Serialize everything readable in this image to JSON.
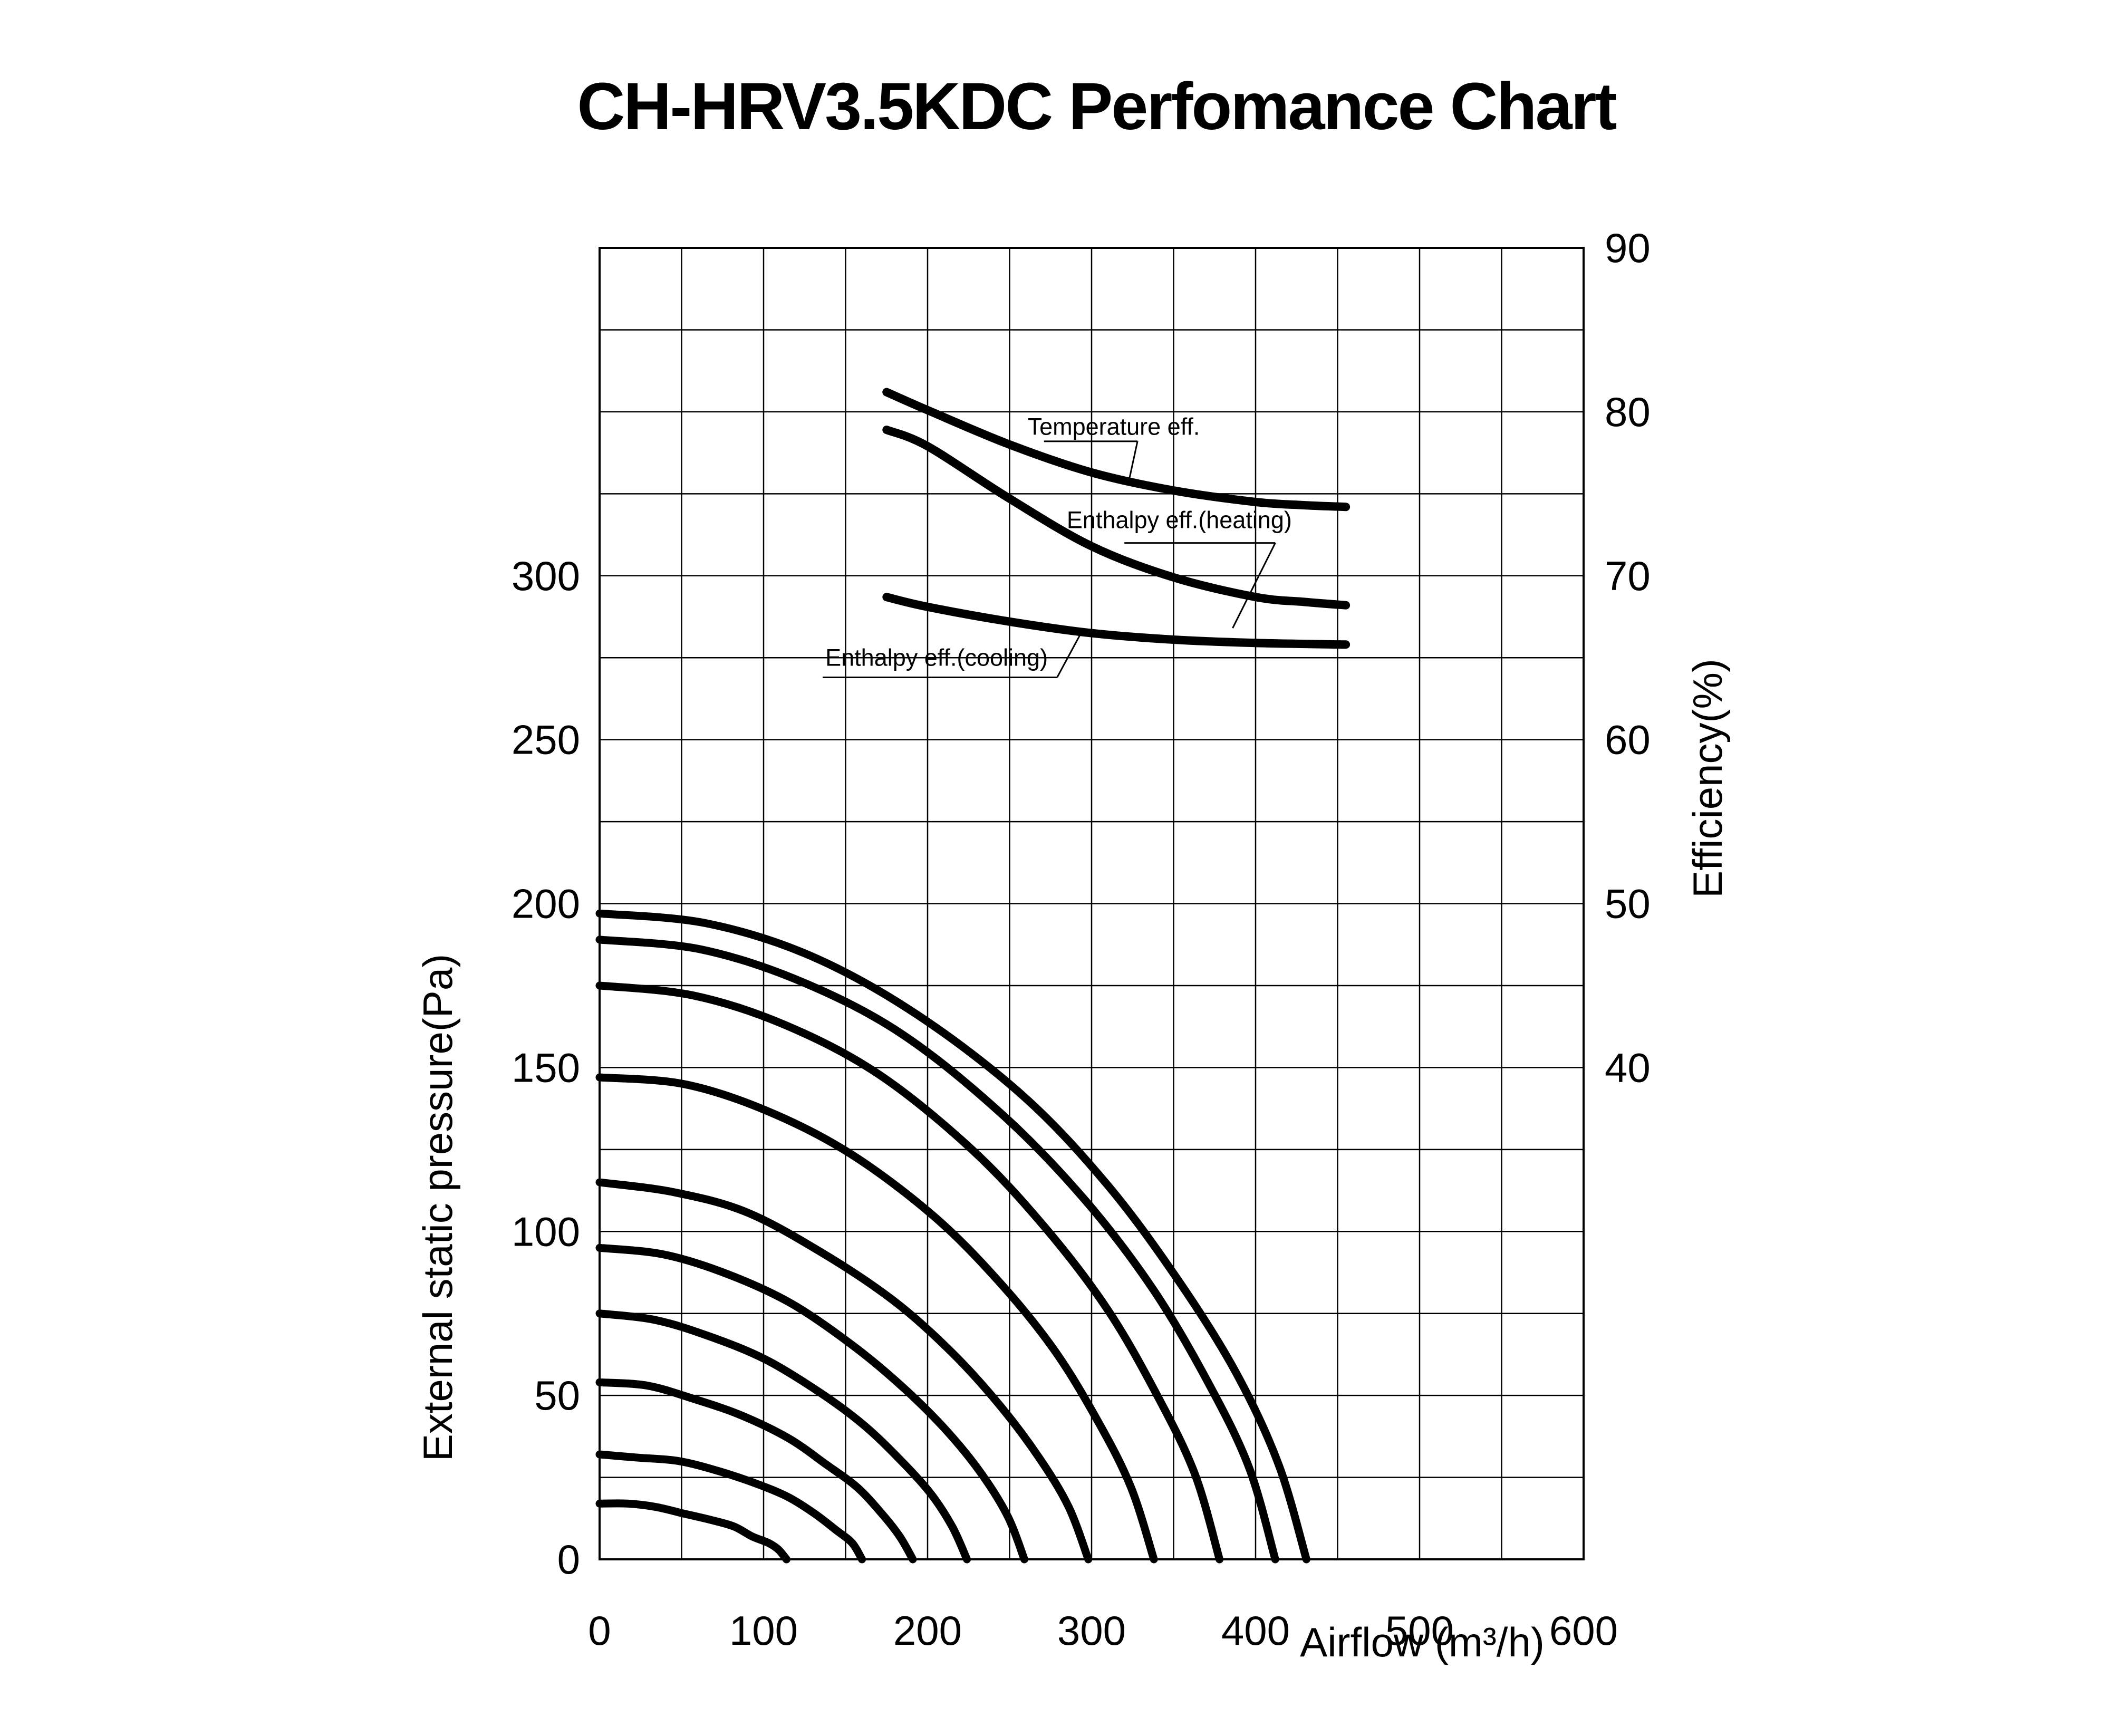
{
  "title": "CH-HRV3.5KDC Perfomance Chart",
  "colors": {
    "ink": "#000000",
    "background": "#ffffff"
  },
  "axes": {
    "x": {
      "label": "Airflow (m³/h)",
      "ticks": [
        0,
        100,
        200,
        300,
        400,
        500,
        600
      ],
      "min": 0,
      "max": 600,
      "gridline_step": 50
    },
    "y_left": {
      "label": "External static pressure(Pa)",
      "ticks": [
        0,
        50,
        100,
        150,
        200,
        250,
        300
      ],
      "min": 0,
      "max": 400,
      "gridline_step": 25
    },
    "y_right": {
      "label": "Efficiency(%)",
      "ticks": [
        40,
        50,
        60,
        70,
        80,
        90
      ],
      "min": 10,
      "max": 90,
      "gridline_step": 5
    }
  },
  "chart_data": {
    "type": "line",
    "grid": true,
    "title": "CH-HRV3.5KDC Perfomance Chart",
    "xlabel": "Airflow (m³/h)",
    "ylabel_left": "External static pressure(Pa)",
    "ylabel_right": "Efficiency(%)",
    "xlim": [
      0,
      600
    ],
    "ylim_left": [
      0,
      400
    ],
    "ylim_right": [
      10,
      90
    ],
    "efficiency_series": [
      {
        "name": "Temperature eff.",
        "points": [
          [
            175,
            81.2
          ],
          [
            200,
            80.1
          ],
          [
            250,
            78.0
          ],
          [
            300,
            76.3
          ],
          [
            350,
            75.2
          ],
          [
            400,
            74.5
          ],
          [
            430,
            74.3
          ],
          [
            455,
            74.2
          ]
        ]
      },
      {
        "name": "Enthalpy eff.(heating)",
        "points": [
          [
            175,
            78.9
          ],
          [
            200,
            77.9
          ],
          [
            250,
            74.7
          ],
          [
            300,
            71.8
          ],
          [
            350,
            69.9
          ],
          [
            400,
            68.7
          ],
          [
            430,
            68.4
          ],
          [
            455,
            68.2
          ]
        ]
      },
      {
        "name": "Enthalpy eff.(cooling)",
        "points": [
          [
            175,
            68.7
          ],
          [
            200,
            68.1
          ],
          [
            250,
            67.2
          ],
          [
            300,
            66.5
          ],
          [
            350,
            66.1
          ],
          [
            400,
            65.9
          ],
          [
            455,
            65.8
          ]
        ]
      }
    ],
    "fan_curves": [
      {
        "p0_pa": 197,
        "qmax": 431,
        "points": [
          [
            0,
            197
          ],
          [
            65,
            194
          ],
          [
            129,
            184
          ],
          [
            194,
            166
          ],
          [
            259,
            141
          ],
          [
            310,
            114
          ],
          [
            353,
            85
          ],
          [
            388,
            57
          ],
          [
            414,
            29
          ],
          [
            431,
            0
          ]
        ]
      },
      {
        "p0_pa": 189,
        "qmax": 412,
        "points": [
          [
            0,
            189
          ],
          [
            62,
            186
          ],
          [
            124,
            176
          ],
          [
            185,
            160
          ],
          [
            247,
            135
          ],
          [
            297,
            109
          ],
          [
            338,
            82
          ],
          [
            371,
            54
          ],
          [
            396,
            28
          ],
          [
            412,
            0
          ]
        ]
      },
      {
        "p0_pa": 175,
        "qmax": 378,
        "points": [
          [
            0,
            175
          ],
          [
            57,
            172
          ],
          [
            113,
            163
          ],
          [
            170,
            148
          ],
          [
            227,
            125
          ],
          [
            272,
            101
          ],
          [
            310,
            76
          ],
          [
            340,
            50
          ],
          [
            363,
            26
          ],
          [
            378,
            0
          ]
        ]
      },
      {
        "p0_pa": 147,
        "qmax": 338,
        "points": [
          [
            0,
            147
          ],
          [
            51,
            145
          ],
          [
            101,
            137
          ],
          [
            152,
            124
          ],
          [
            203,
            105
          ],
          [
            243,
            85
          ],
          [
            277,
            64
          ],
          [
            304,
            42
          ],
          [
            324,
            22
          ],
          [
            338,
            0
          ]
        ]
      },
      {
        "p0_pa": 115,
        "qmax": 298,
        "points": [
          [
            0,
            115
          ],
          [
            45,
            112
          ],
          [
            89,
            106
          ],
          [
            134,
            94
          ],
          [
            179,
            79
          ],
          [
            215,
            63
          ],
          [
            244,
            47
          ],
          [
            268,
            31
          ],
          [
            286,
            16
          ],
          [
            298,
            0
          ]
        ]
      },
      {
        "p0_pa": 95,
        "qmax": 259,
        "points": [
          [
            0,
            95
          ],
          [
            39,
            93
          ],
          [
            78,
            87
          ],
          [
            117,
            78
          ],
          [
            155,
            65
          ],
          [
            186,
            52
          ],
          [
            212,
            39
          ],
          [
            233,
            26
          ],
          [
            249,
            13
          ],
          [
            259,
            0
          ]
        ]
      },
      {
        "p0_pa": 75,
        "qmax": 224,
        "points": [
          [
            0,
            75
          ],
          [
            34,
            73
          ],
          [
            67,
            68
          ],
          [
            101,
            61
          ],
          [
            134,
            51
          ],
          [
            161,
            41
          ],
          [
            184,
            30
          ],
          [
            202,
            20
          ],
          [
            215,
            10
          ],
          [
            224,
            0
          ]
        ]
      },
      {
        "p0_pa": 54,
        "qmax": 191,
        "points": [
          [
            0,
            54
          ],
          [
            29,
            53
          ],
          [
            57,
            49
          ],
          [
            86,
            44
          ],
          [
            115,
            37
          ],
          [
            138,
            29
          ],
          [
            157,
            22
          ],
          [
            172,
            14
          ],
          [
            183,
            7
          ],
          [
            191,
            0
          ]
        ]
      },
      {
        "p0_pa": 32,
        "qmax": 160,
        "points": [
          [
            0,
            32
          ],
          [
            24,
            31
          ],
          [
            48,
            30
          ],
          [
            72,
            27
          ],
          [
            96,
            23
          ],
          [
            115,
            19
          ],
          [
            131,
            14
          ],
          [
            144,
            9
          ],
          [
            154,
            5
          ],
          [
            160,
            0
          ]
        ]
      },
      {
        "p0_pa": 17,
        "qmax": 114,
        "points": [
          [
            0,
            17
          ],
          [
            17,
            17
          ],
          [
            34,
            16
          ],
          [
            51,
            14
          ],
          [
            68,
            12
          ],
          [
            82,
            10
          ],
          [
            93,
            7
          ],
          [
            103,
            5
          ],
          [
            109,
            3
          ],
          [
            114,
            0
          ]
        ]
      }
    ],
    "annotations": [
      {
        "id": "temperature-eff",
        "text": "Temperature eff.",
        "text_x": 313.5,
        "text_eff": 79.1,
        "underline": [
          [
            271,
            78.2
          ],
          [
            328,
            78.2
          ]
        ],
        "leader": [
          [
            328,
            78.2
          ],
          [
            323,
            75.9
          ]
        ]
      },
      {
        "id": "enthalpy-eff-heating",
        "text": "Enthalpy eff.(heating)",
        "text_x": 353.5,
        "text_eff": 73.4,
        "underline": [
          [
            320,
            72.0
          ],
          [
            412,
            72.0
          ]
        ],
        "leader": [
          [
            412,
            72.0
          ],
          [
            386,
            66.8
          ]
        ]
      },
      {
        "id": "enthalpy-eff-cooling",
        "text": "Enthalpy eff.(cooling)",
        "text_x": 205.5,
        "text_eff": 65.0,
        "underline": [
          [
            136,
            63.8
          ],
          [
            279,
            63.8
          ]
        ],
        "leader": [
          [
            279,
            63.8
          ],
          [
            293,
            66.4
          ]
        ]
      }
    ]
  }
}
